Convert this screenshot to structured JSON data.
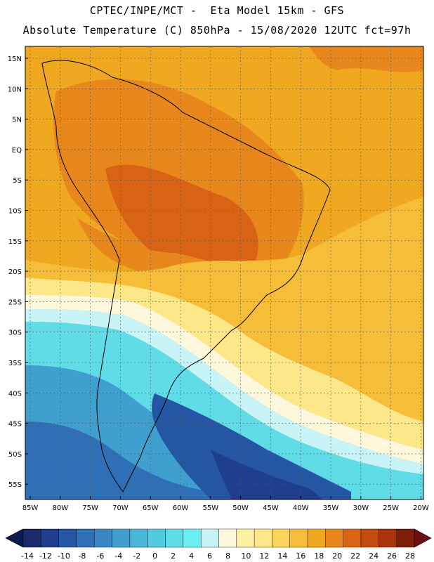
{
  "header": {
    "line1": "CPTEC/INPE/MCT -  Eta Model 15km - GFS",
    "line2": "Absolute Temperature (C) 850hPa - 15/08/2020 12UTC fct=97h"
  },
  "map": {
    "lat_labels": [
      "15N",
      "10N",
      "5N",
      "EQ",
      "5S",
      "10S",
      "15S",
      "20S",
      "25S",
      "30S",
      "35S",
      "40S",
      "45S",
      "50S",
      "55S"
    ],
    "lon_labels": [
      "85W",
      "80W",
      "75W",
      "70W",
      "65W",
      "60W",
      "55W",
      "50W",
      "45W",
      "40W",
      "35W",
      "30W",
      "25W",
      "20W"
    ]
  },
  "colorbar": {
    "labels": [
      "-14",
      "-12",
      "-10",
      "-8",
      "-6",
      "-4",
      "-2",
      "0",
      "2",
      "4",
      "6",
      "8",
      "10",
      "12",
      "14",
      "16",
      "18",
      "20",
      "22",
      "24",
      "26",
      "28"
    ],
    "colors": [
      "#1a2a6c",
      "#1f3f8e",
      "#2556a3",
      "#2f6fb6",
      "#3a87c4",
      "#3fa0cf",
      "#47b6d8",
      "#52cbe0",
      "#5fdce8",
      "#6af0f0",
      "#c8f4f7",
      "#fdf8dc",
      "#fbf1a0",
      "#fde788",
      "#fbd55e",
      "#f5bd38",
      "#f0a820",
      "#e8871c",
      "#d96314",
      "#c44c10",
      "#a8330c",
      "#7f1f0a"
    ],
    "under_color": "#0c1a4f",
    "over_color": "#6b0f0f"
  }
}
